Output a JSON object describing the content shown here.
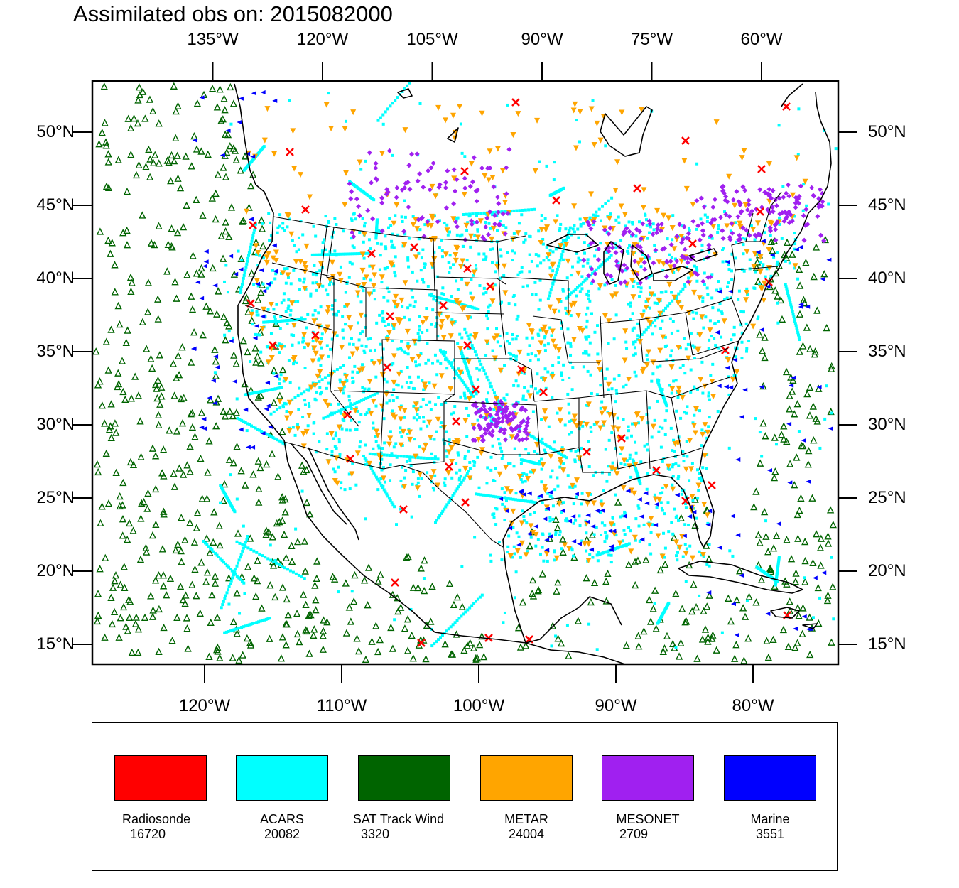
{
  "title": "Assimilated obs on: 2015082000",
  "top_lon_labels": [
    {
      "lon": -135,
      "label": "135°W"
    },
    {
      "lon": -120,
      "label": "120°W"
    },
    {
      "lon": -105,
      "label": "105°W"
    },
    {
      "lon": -90,
      "label": "90°W"
    },
    {
      "lon": -75,
      "label": "75°W"
    },
    {
      "lon": -60,
      "label": "60°W"
    }
  ],
  "bottom_lon_labels": [
    {
      "lon": -120,
      "label": "120°W"
    },
    {
      "lon": -110,
      "label": "110°W"
    },
    {
      "lon": -100,
      "label": "100°W"
    },
    {
      "lon": -90,
      "label": "90°W"
    },
    {
      "lon": -80,
      "label": "80°W"
    }
  ],
  "lat_labels": [
    {
      "lat": 50,
      "label": "50°N"
    },
    {
      "lat": 45,
      "label": "45°N"
    },
    {
      "lat": 40,
      "label": "40°N"
    },
    {
      "lat": 35,
      "label": "35°N"
    },
    {
      "lat": 30,
      "label": "30°N"
    },
    {
      "lat": 25,
      "label": "25°N"
    },
    {
      "lat": 20,
      "label": "20°N"
    },
    {
      "lat": 15,
      "label": "15°N"
    }
  ],
  "legend": [
    {
      "label": "Radiosonde",
      "count": "16720",
      "color": "#ff0000"
    },
    {
      "label": "ACARS",
      "count": "20082",
      "color": "#00ffff"
    },
    {
      "label": "SAT Track Wind",
      "count": "3320",
      "color": "#006400"
    },
    {
      "label": "METAR",
      "count": "24004",
      "color": "#ffa500"
    },
    {
      "label": "MESONET",
      "count": "2709",
      "color": "#a020f0"
    },
    {
      "label": "Marine",
      "count": "3551",
      "color": "#0000ff"
    }
  ]
}
